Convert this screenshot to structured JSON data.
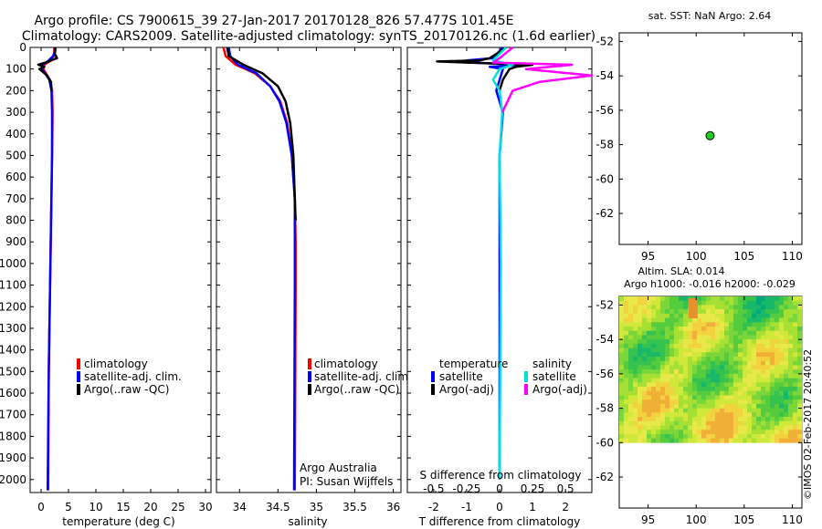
{
  "header": {
    "line1": "Argo profile: CS 7900615_39 27-Jan-2017 20170128_826 57.477S 101.45E",
    "line2": "Climatology: CARS2009. Satellite-adjusted climatology: synTS_20170126.nc (1.6d earlier)"
  },
  "credit": "©IMOS 02-Feb-2017 20:40:52",
  "depth_ticks": [
    0,
    100,
    200,
    300,
    400,
    500,
    600,
    700,
    800,
    900,
    1000,
    1100,
    1200,
    1300,
    1400,
    1500,
    1600,
    1700,
    1800,
    1900,
    2000
  ],
  "colors": {
    "climatology": "#ff0000",
    "satellite": "#0000ff",
    "argo": "#000000",
    "sat_salinity": "#00e0e0",
    "argo_salinity": "#ff00ff",
    "float_marker": "#22cc22"
  },
  "chart_data": [
    {
      "id": "temperature",
      "type": "line",
      "xlabel": "temperature (deg C)",
      "xlim": [
        -2,
        31
      ],
      "ylim": [
        2060,
        0
      ],
      "xticks": [
        0,
        5,
        10,
        15,
        20,
        25,
        30
      ],
      "legend": [
        "climatology",
        "satellite-adj. clim.",
        "Argo(..raw -QC)"
      ],
      "series": [
        {
          "name": "climatology",
          "depth": [
            0,
            20,
            40,
            60,
            80,
            100,
            150,
            200,
            300,
            500,
            1000,
            1500,
            2050
          ],
          "values": [
            2.4,
            2.4,
            2.3,
            1.8,
            0.6,
            0.4,
            1.6,
            2.0,
            2.1,
            2.0,
            1.7,
            1.4,
            1.3
          ]
        },
        {
          "name": "satellite-adj. clim.",
          "depth": [
            0,
            20,
            40,
            60,
            80,
            100,
            150,
            200,
            300,
            500,
            1000,
            1500,
            2050
          ],
          "values": [
            2.5,
            2.5,
            2.2,
            1.4,
            0.3,
            0.2,
            1.5,
            1.9,
            2.0,
            2.0,
            1.7,
            1.4,
            1.2
          ]
        },
        {
          "name": "Argo",
          "depth": [
            0,
            10,
            30,
            50,
            70,
            80,
            90,
            100,
            130,
            160,
            200
          ],
          "values": [
            2.6,
            2.6,
            2.5,
            2.9,
            0.8,
            -0.5,
            0.6,
            -0.3,
            1.1,
            1.8,
            1.9
          ]
        }
      ]
    },
    {
      "id": "salinity",
      "type": "line",
      "xlabel": "salinity",
      "xlim": [
        33.7,
        36.1
      ],
      "ylim": [
        2060,
        0
      ],
      "xticks": [
        34,
        34.5,
        35,
        35.5,
        36
      ],
      "xtick_labels": [
        "34",
        "34.5",
        "35",
        "35.5",
        "36"
      ],
      "legend": [
        "climatology",
        "satellite-adj. clim.",
        "Argo(..raw -QC)"
      ],
      "annotation": [
        "Argo Australia",
        "PI: Susan Wijffels"
      ],
      "series": [
        {
          "name": "climatology",
          "depth": [
            0,
            40,
            80,
            120,
            180,
            250,
            350,
            500,
            700,
            900,
            1100,
            2050
          ],
          "values": [
            33.79,
            33.82,
            33.95,
            34.2,
            34.4,
            34.53,
            34.62,
            34.68,
            34.72,
            34.73,
            34.73,
            34.72
          ]
        },
        {
          "name": "satellite-adj. clim.",
          "depth": [
            0,
            40,
            80,
            120,
            180,
            250,
            350,
            500,
            700,
            900,
            1100,
            2050
          ],
          "values": [
            33.86,
            33.88,
            33.98,
            34.22,
            34.4,
            34.52,
            34.61,
            34.68,
            34.72,
            34.72,
            34.72,
            34.71
          ]
        },
        {
          "name": "Argo",
          "depth": [
            0,
            40,
            80,
            120,
            180,
            250,
            350,
            500,
            700,
            800
          ],
          "values": [
            33.84,
            33.86,
            34.05,
            34.3,
            34.5,
            34.6,
            34.66,
            34.7,
            34.72,
            34.73
          ]
        }
      ]
    },
    {
      "id": "difference",
      "type": "line",
      "xlabel": "T difference from climatology",
      "xlim": [
        -2.8,
        2.8
      ],
      "ylim": [
        2060,
        0
      ],
      "xticks": [
        -2,
        -1,
        0,
        1,
        2
      ],
      "top_label": "S difference from climatology",
      "top_ticks": [
        "-0.5",
        "-0.25",
        "0",
        "0.25",
        "0.5"
      ],
      "legend_headers": [
        "temperature",
        "salinity"
      ],
      "legend": [
        "satellite",
        "Argo(-adj)",
        "satellite",
        "Argo(-adj)"
      ],
      "series": [
        {
          "name": "temperature satellite",
          "depth": [
            0,
            50,
            60,
            70,
            80,
            90,
            100,
            150,
            200,
            300,
            500,
            1000,
            2000
          ],
          "values": [
            0.1,
            -0.2,
            -1.0,
            -0.8,
            0.7,
            -0.3,
            0.1,
            0.0,
            -0.1,
            0.1,
            0.0,
            0.0,
            0.0
          ]
        },
        {
          "name": "temperature Argo",
          "depth": [
            0,
            50,
            60,
            65,
            70,
            80,
            90,
            100,
            150,
            200
          ],
          "values": [
            0.2,
            -0.3,
            -0.6,
            -1.9,
            -1.0,
            1.0,
            0.5,
            0.3,
            0.1,
            0.0
          ]
        },
        {
          "name": "salinity satellite",
          "depth": [
            0,
            60,
            80,
            100,
            150,
            200,
            300,
            500,
            1000,
            2000
          ],
          "values": [
            0.05,
            -0.05,
            0.1,
            0.0,
            -0.05,
            0.0,
            0.02,
            0.0,
            0.01,
            0.0
          ]
        },
        {
          "name": "salinity Argo",
          "depth": [
            0,
            50,
            70,
            80,
            100,
            130,
            160,
            200,
            300
          ],
          "values": [
            0.1,
            0.0,
            -0.05,
            0.55,
            0.2,
            0.7,
            0.3,
            0.1,
            0.02
          ]
        }
      ]
    },
    {
      "id": "sst-map",
      "type": "scatter",
      "title": "sat. SST: NaN Argo: 2.64",
      "xlim": [
        92,
        111
      ],
      "ylim": [
        -63.8,
        -51.5
      ],
      "xticks": [
        95,
        100,
        105,
        110
      ],
      "yticks": [
        -52,
        -54,
        -56,
        -58,
        -60,
        -62
      ],
      "points": [
        {
          "x": 101.45,
          "y": -57.477
        }
      ]
    },
    {
      "id": "sla-map",
      "type": "heatmap",
      "title": "Altim. SLA: 0.014",
      "subtitle": "Argo h1000: -0.016 h2000: -0.029",
      "xlim": [
        92,
        111
      ],
      "ylim": [
        -63.8,
        -51.5
      ],
      "xticks": [
        95,
        100,
        105,
        110
      ],
      "yticks": [
        -52,
        -54,
        -56,
        -58,
        -60,
        -62
      ],
      "data_extent_lat": [
        -60,
        -51.5
      ]
    }
  ]
}
